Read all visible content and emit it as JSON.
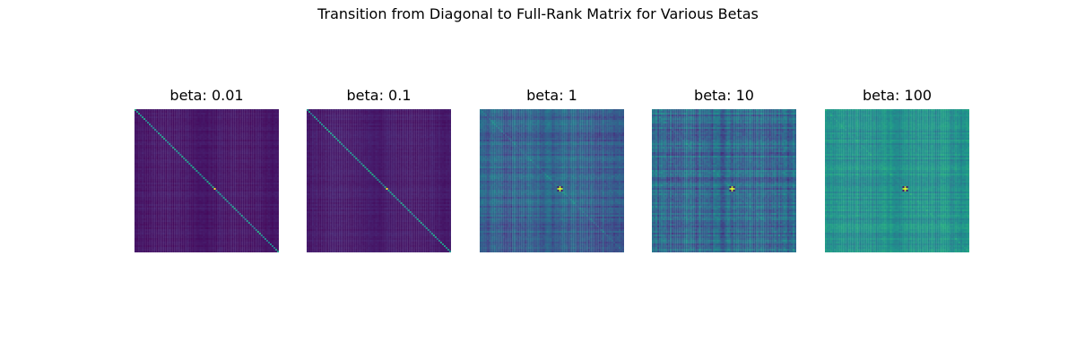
{
  "figure": {
    "title": "Transition from Diagonal to Full-Rank Matrix for Various Betas"
  },
  "chart_data": [
    {
      "type": "heatmap",
      "title": "beta: 0.01",
      "beta": 0.01,
      "colormap": "viridis",
      "axes_visible": false,
      "structure": "dominantly diagonal; near-uniform dark purple off-diagonal; brightest (yellow) cell near center"
    },
    {
      "type": "heatmap",
      "title": "beta: 0.1",
      "beta": 0.1,
      "colormap": "viridis",
      "axes_visible": false,
      "structure": "dominantly diagonal; near-uniform dark purple off-diagonal; brightest (yellow) cell near center"
    },
    {
      "type": "heatmap",
      "title": "beta: 1",
      "beta": 1,
      "colormap": "viridis",
      "axes_visible": false,
      "structure": "full-rank; blue background with row/column banding; brightest cell near center"
    },
    {
      "type": "heatmap",
      "title": "beta: 10",
      "beta": 10,
      "colormap": "viridis",
      "axes_visible": false,
      "structure": "full-rank; blue background with strong row/column banding"
    },
    {
      "type": "heatmap",
      "title": "beta: 100",
      "beta": 100,
      "colormap": "viridis",
      "axes_visible": false,
      "structure": "full-rank; teal background with row/column banding"
    }
  ]
}
